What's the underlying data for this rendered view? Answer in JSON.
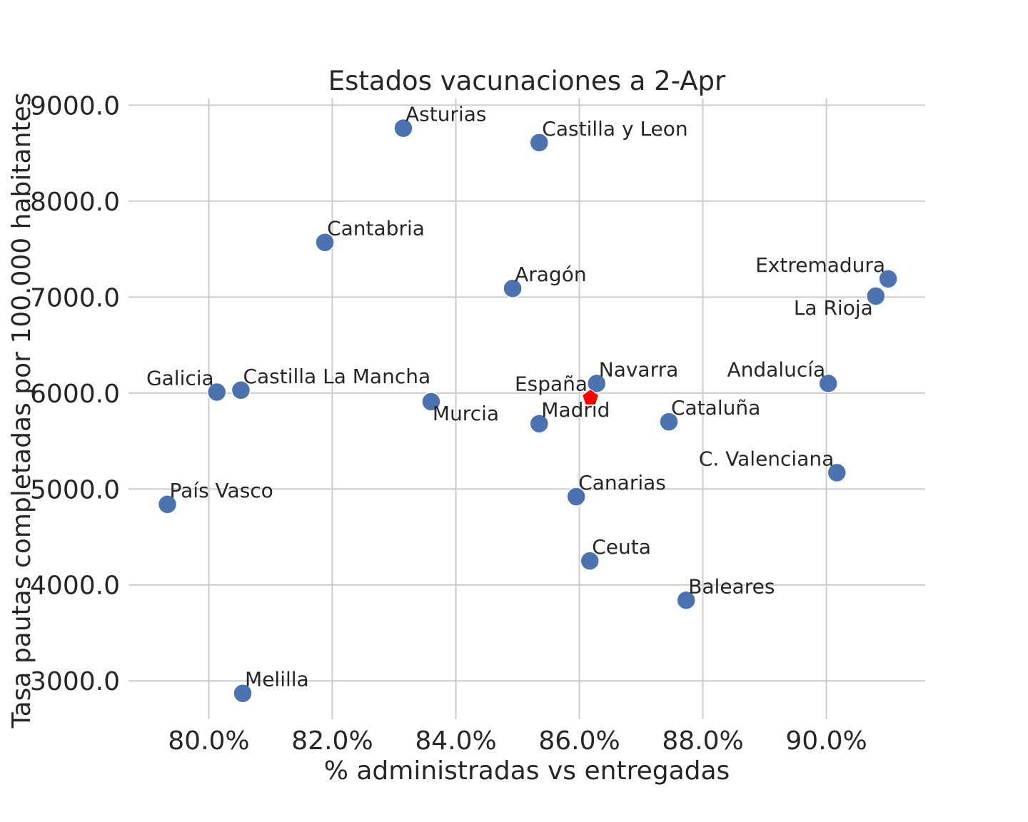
{
  "chart_data": {
    "type": "scatter",
    "title": "Estados vacunaciones a 2-Apr",
    "xlabel": "% administradas vs entregadas",
    "ylabel": "Tasa pautas completadas por 100.000 habitantes",
    "xlim": [
      78.7,
      91.6
    ],
    "ylim": [
      2600,
      9070
    ],
    "x_ticks": [
      80.0,
      82.0,
      84.0,
      86.0,
      88.0,
      90.0
    ],
    "x_tick_labels": [
      "80.0%",
      "82.0%",
      "84.0%",
      "86.0%",
      "88.0%",
      "90.0%"
    ],
    "y_ticks": [
      3000,
      4000,
      5000,
      6000,
      7000,
      8000,
      9000
    ],
    "y_tick_labels": [
      "3000.0",
      "4000.0",
      "5000.0",
      "6000.0",
      "7000.0",
      "8000.0",
      "9000.0"
    ],
    "grid": true,
    "colors": {
      "regions": "#4c72b0",
      "national": "#ff0000"
    },
    "points": [
      {
        "label": "Asturias",
        "x": 83.15,
        "y": 8760,
        "label_pos": "upper-right"
      },
      {
        "label": "Castilla y Leon",
        "x": 85.35,
        "y": 8610,
        "label_pos": "right"
      },
      {
        "label": "Cantabria",
        "x": 81.88,
        "y": 7570,
        "label_pos": "upper-right"
      },
      {
        "label": "Aragón",
        "x": 84.92,
        "y": 7090,
        "label_pos": "upper-right"
      },
      {
        "label": "Extremadura",
        "x": 91.0,
        "y": 7190,
        "label_pos": "upper-left"
      },
      {
        "label": "La Rioja",
        "x": 90.8,
        "y": 7010,
        "label_pos": "lower-left"
      },
      {
        "label": "Galicia",
        "x": 80.13,
        "y": 6010,
        "label_pos": "upper-left"
      },
      {
        "label": "Castilla La Mancha",
        "x": 80.52,
        "y": 6030,
        "label_pos": "upper-right"
      },
      {
        "label": "Murcia",
        "x": 83.6,
        "y": 5910,
        "label_pos": "lower-right"
      },
      {
        "label": "Navarra",
        "x": 86.28,
        "y": 6100,
        "label_pos": "upper-right"
      },
      {
        "label": "España",
        "x": 86.18,
        "y": 5950,
        "label_pos": "upper-left",
        "national": true
      },
      {
        "label": "Madrid",
        "x": 85.35,
        "y": 5680,
        "label_pos": "upper-right"
      },
      {
        "label": "Cataluña",
        "x": 87.45,
        "y": 5700,
        "label_pos": "upper-right"
      },
      {
        "label": "Andalucía",
        "x": 90.03,
        "y": 6100,
        "label_pos": "upper-left"
      },
      {
        "label": "C. Valenciana",
        "x": 90.17,
        "y": 5170,
        "label_pos": "upper-left"
      },
      {
        "label": "País Vasco",
        "x": 79.33,
        "y": 4840,
        "label_pos": "upper-right"
      },
      {
        "label": "Canarias",
        "x": 85.95,
        "y": 4920,
        "label_pos": "upper-right"
      },
      {
        "label": "Ceuta",
        "x": 86.17,
        "y": 4250,
        "label_pos": "upper-right"
      },
      {
        "label": "Baleares",
        "x": 87.73,
        "y": 3840,
        "label_pos": "upper-right"
      },
      {
        "label": "Melilla",
        "x": 80.55,
        "y": 2870,
        "label_pos": "upper-right"
      }
    ]
  }
}
